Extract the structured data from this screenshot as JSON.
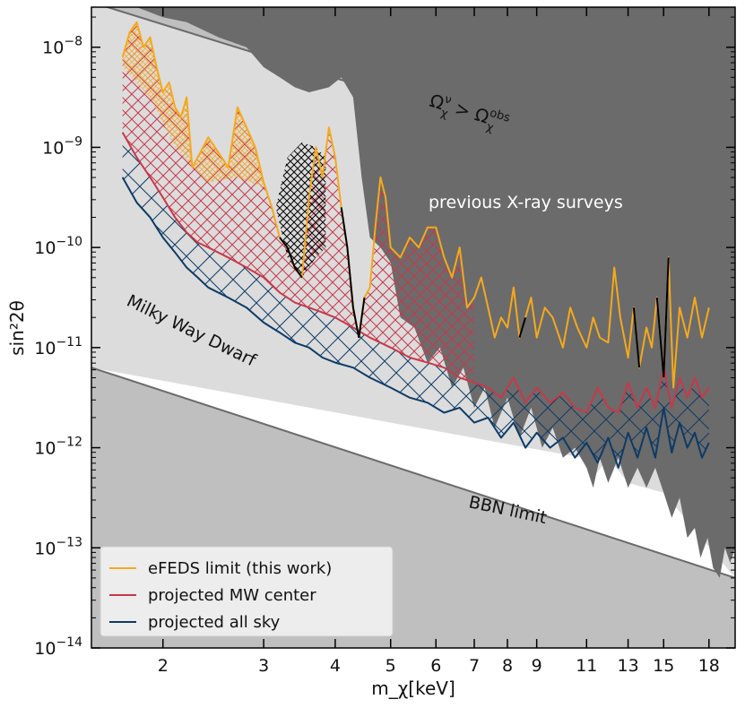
{
  "chart_data": {
    "type": "line",
    "title": "",
    "xlabel": "m_χ[keV]",
    "ylabel": "sin²2θ",
    "xscale": "log",
    "yscale": "log",
    "xlim": [
      1.5,
      20
    ],
    "ylim_exp": [
      -14,
      -7.6
    ],
    "x_ticks": [
      2,
      3,
      4,
      5,
      6,
      7,
      8,
      9,
      11,
      13,
      15,
      18
    ],
    "y_ticks": [
      {
        "exp": -8,
        "base": "10",
        "power": "−8"
      },
      {
        "exp": -9,
        "base": "10",
        "power": "−9"
      },
      {
        "exp": -10,
        "base": "10",
        "power": "−10"
      },
      {
        "exp": -11,
        "base": "10",
        "power": "−11"
      },
      {
        "exp": -12,
        "base": "10",
        "power": "−12"
      },
      {
        "exp": -13,
        "base": "10",
        "power": "−13"
      },
      {
        "exp": -14,
        "base": "10",
        "power": "−14"
      }
    ],
    "region_labels": {
      "omega": "Ω_χ^ν > Ω_χ^obs",
      "omega_main": "Ω",
      "omega_sub": "χ",
      "omega_sup": "ν",
      "omega_gt": " > ",
      "omega2_main": "Ω",
      "omega2_sub": "χ",
      "omega2_sup": "obs",
      "previous": "previous X-ray surveys",
      "dwarf": "Milky Way Dwarf",
      "bbn": "BBN limit"
    },
    "colors": {
      "efeds": "#f5a91b",
      "mw_center": "#c8384a",
      "all_sky": "#0d3b66",
      "excluded_dark": "#6b6b6b",
      "excluded_light": "#bfbfbf",
      "dwarf_band": "#dcdcdc",
      "black_segment": "#000000"
    },
    "series": [
      {
        "name": "eFEDS limit (this work)",
        "color": "#f5a91b",
        "x": [
          1.7,
          1.75,
          1.8,
          1.85,
          1.9,
          1.95,
          2.0,
          2.05,
          2.1,
          2.15,
          2.2,
          2.25,
          2.3,
          2.4,
          2.5,
          2.6,
          2.7,
          2.8,
          2.9,
          3.0,
          3.1,
          3.2,
          3.3,
          3.4,
          3.5,
          3.6,
          3.7,
          3.8,
          3.9,
          4.0,
          4.1,
          4.2,
          4.3,
          4.4,
          4.5,
          4.6,
          4.7,
          4.8,
          4.9,
          5.0,
          5.2,
          5.4,
          5.6,
          5.8,
          6.0,
          6.2,
          6.4,
          6.6,
          6.8,
          7.0,
          7.2,
          7.4,
          7.6,
          7.8,
          8.0,
          8.2,
          8.4,
          8.6,
          8.8,
          9.0,
          9.3,
          9.6,
          10.0,
          10.3,
          10.6,
          11.0,
          11.3,
          11.6,
          12.0,
          12.3,
          12.6,
          13.0,
          13.3,
          13.6,
          14.0,
          14.3,
          14.6,
          15.0,
          15.3,
          15.6,
          16.0,
          16.5,
          17.0,
          17.5,
          18.0
        ],
        "y_exp": [
          -8.1,
          -7.85,
          -7.75,
          -8.0,
          -7.9,
          -8.2,
          -8.45,
          -8.35,
          -8.6,
          -8.7,
          -8.5,
          -9.2,
          -9.1,
          -8.9,
          -9.05,
          -9.2,
          -8.6,
          -8.8,
          -9.0,
          -9.35,
          -9.6,
          -9.9,
          -10.0,
          -10.2,
          -10.3,
          -9.5,
          -9.0,
          -9.3,
          -8.8,
          -9.1,
          -9.6,
          -10.0,
          -10.6,
          -10.9,
          -10.5,
          -10.4,
          -9.8,
          -9.3,
          -9.5,
          -10.0,
          -10.1,
          -9.9,
          -10.0,
          -9.8,
          -9.8,
          -10.1,
          -10.3,
          -10.0,
          -10.6,
          -10.5,
          -10.3,
          -10.6,
          -10.9,
          -10.7,
          -10.8,
          -10.4,
          -10.9,
          -10.7,
          -10.5,
          -10.9,
          -10.6,
          -10.7,
          -11.0,
          -10.6,
          -10.8,
          -11.0,
          -10.7,
          -10.9,
          -10.95,
          -10.2,
          -10.7,
          -11.1,
          -10.6,
          -11.2,
          -10.8,
          -11.0,
          -10.5,
          -11.3,
          -10.1,
          -11.4,
          -10.6,
          -10.9,
          -10.5,
          -10.9,
          -10.6
        ]
      },
      {
        "name": "projected MW center",
        "color": "#c8384a",
        "x": [
          1.7,
          1.8,
          1.9,
          2.0,
          2.1,
          2.2,
          2.3,
          2.4,
          2.6,
          2.8,
          3.0,
          3.2,
          3.4,
          3.6,
          3.8,
          4.0,
          4.3,
          4.6,
          5.0,
          5.4,
          5.8,
          6.2,
          6.6,
          7.0,
          7.4,
          7.8,
          8.2,
          8.6,
          9.0,
          9.5,
          10.0,
          10.5,
          11.0,
          11.5,
          12.0,
          12.5,
          13.0,
          13.5,
          14.0,
          14.5,
          15.0,
          15.5,
          16.0,
          16.5,
          17.0,
          17.5,
          18.0
        ],
        "y_exp": [
          -8.85,
          -9.1,
          -9.3,
          -9.5,
          -9.7,
          -9.85,
          -9.95,
          -10.0,
          -10.1,
          -10.2,
          -10.3,
          -10.45,
          -10.55,
          -10.6,
          -10.65,
          -10.7,
          -10.8,
          -10.9,
          -11.0,
          -11.1,
          -11.15,
          -11.2,
          -11.3,
          -11.35,
          -11.4,
          -11.5,
          -11.3,
          -11.55,
          -11.4,
          -11.55,
          -11.45,
          -11.6,
          -11.65,
          -11.4,
          -11.6,
          -11.65,
          -11.35,
          -11.6,
          -11.4,
          -11.6,
          -11.2,
          -11.6,
          -11.3,
          -11.5,
          -11.3,
          -11.5,
          -11.4
        ]
      },
      {
        "name": "projected all sky",
        "color": "#0d3b66",
        "x": [
          1.7,
          1.8,
          1.9,
          2.0,
          2.1,
          2.2,
          2.3,
          2.4,
          2.6,
          2.8,
          3.0,
          3.2,
          3.4,
          3.6,
          3.8,
          4.0,
          4.3,
          4.6,
          5.0,
          5.4,
          5.8,
          6.2,
          6.6,
          7.0,
          7.4,
          7.8,
          8.2,
          8.6,
          9.0,
          9.5,
          10.0,
          10.5,
          11.0,
          11.5,
          12.0,
          12.5,
          13.0,
          13.5,
          14.0,
          14.5,
          15.0,
          15.5,
          16.0,
          16.5,
          17.0,
          17.5,
          18.0
        ],
        "y_exp": [
          -9.3,
          -9.55,
          -9.7,
          -9.9,
          -10.05,
          -10.2,
          -10.3,
          -10.4,
          -10.5,
          -10.6,
          -10.75,
          -10.85,
          -10.95,
          -11.0,
          -11.1,
          -11.15,
          -11.2,
          -11.3,
          -11.4,
          -11.5,
          -11.55,
          -11.65,
          -11.6,
          -11.75,
          -11.7,
          -11.9,
          -11.75,
          -12.0,
          -11.85,
          -12.0,
          -11.9,
          -12.1,
          -11.95,
          -12.15,
          -11.9,
          -12.2,
          -11.85,
          -12.1,
          -11.8,
          -12.1,
          -11.6,
          -12.05,
          -11.75,
          -12.0,
          -11.85,
          -12.1,
          -11.95
        ]
      }
    ],
    "legend": [
      {
        "label": "eFEDS limit (this work)",
        "color": "#f5a91b"
      },
      {
        "label": "projected MW center",
        "color": "#c8384a"
      },
      {
        "label": "projected all sky",
        "color": "#0d3b66"
      }
    ],
    "legend_position": "lower-left"
  }
}
